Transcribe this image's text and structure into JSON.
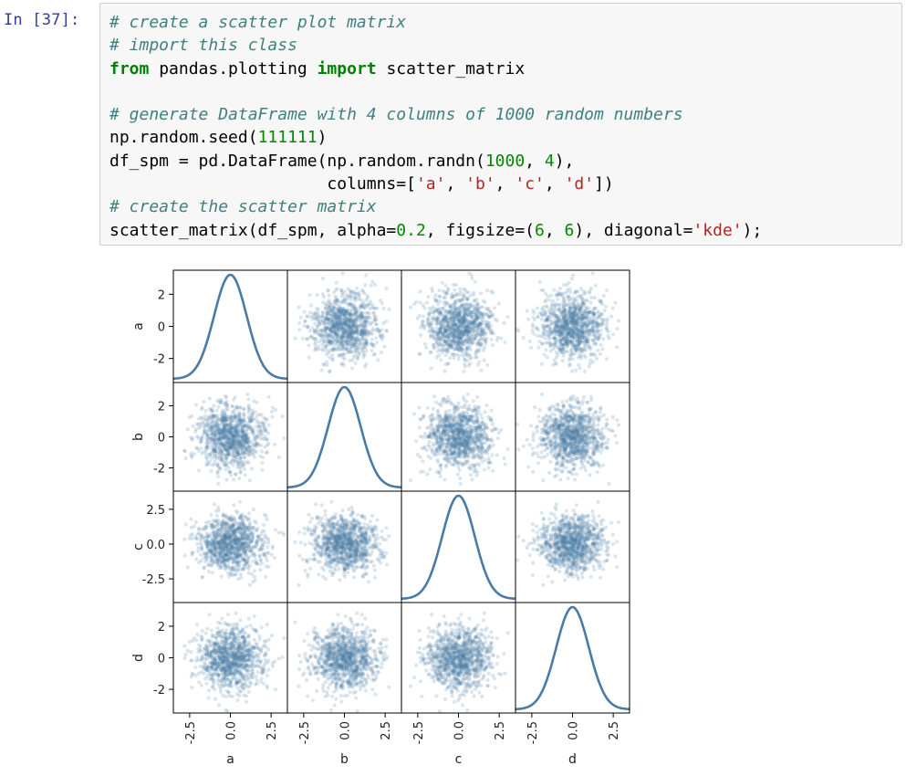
{
  "cell": {
    "prompt": "In [37]:",
    "code_lines": [
      [
        {
          "t": "# create a scatter plot matrix",
          "c": "cm"
        }
      ],
      [
        {
          "t": "# import this class",
          "c": "cm"
        }
      ],
      [
        {
          "t": "from",
          "c": "kw"
        },
        {
          "t": " pandas.plotting ",
          "c": ""
        },
        {
          "t": "import",
          "c": "kw"
        },
        {
          "t": " scatter_matrix",
          "c": ""
        }
      ],
      [
        {
          "t": "",
          "c": ""
        }
      ],
      [
        {
          "t": "# generate DataFrame with 4 columns of 1000 random numbers",
          "c": "cm"
        }
      ],
      [
        {
          "t": "np.random.seed(",
          "c": ""
        },
        {
          "t": "111111",
          "c": "num"
        },
        {
          "t": ")",
          "c": ""
        }
      ],
      [
        {
          "t": "df_spm = pd.DataFrame(np.random.randn(",
          "c": ""
        },
        {
          "t": "1000",
          "c": "num"
        },
        {
          "t": ", ",
          "c": ""
        },
        {
          "t": "4",
          "c": "num"
        },
        {
          "t": "),",
          "c": ""
        }
      ],
      [
        {
          "t": "                      columns=[",
          "c": ""
        },
        {
          "t": "'a'",
          "c": "st"
        },
        {
          "t": ", ",
          "c": ""
        },
        {
          "t": "'b'",
          "c": "st"
        },
        {
          "t": ", ",
          "c": ""
        },
        {
          "t": "'c'",
          "c": "st"
        },
        {
          "t": ", ",
          "c": ""
        },
        {
          "t": "'d'",
          "c": "st"
        },
        {
          "t": "])",
          "c": ""
        }
      ],
      [
        {
          "t": "# create the scatter matrix",
          "c": "cm"
        }
      ],
      [
        {
          "t": "scatter_matrix(df_spm, alpha=",
          "c": ""
        },
        {
          "t": "0.2",
          "c": "num"
        },
        {
          "t": ", figsize=(",
          "c": ""
        },
        {
          "t": "6",
          "c": "num"
        },
        {
          "t": ", ",
          "c": ""
        },
        {
          "t": "6",
          "c": "num"
        },
        {
          "t": "), diagonal=",
          "c": ""
        },
        {
          "t": "'kde'",
          "c": "st"
        },
        {
          "t": ");",
          "c": ""
        }
      ]
    ]
  },
  "colors": {
    "prompt": "#303f9f",
    "cell_bg": "#f7f7f7",
    "cell_border": "#cfcfcf",
    "point": "#4a7ba6",
    "kde_line": "#4a7ba6",
    "frame": "#000000"
  },
  "chart_data": {
    "type": "scatter",
    "subtype": "scatter_matrix",
    "variables": [
      "a",
      "b",
      "c",
      "d"
    ],
    "n_points": 1000,
    "alpha": 0.2,
    "diagonal": "kde",
    "distribution": "standard normal, independent columns",
    "x_ticks": {
      "a": [
        "-2.5",
        "0.0",
        "2.5"
      ],
      "b": [
        "-2.5",
        "0.0",
        "2.5"
      ],
      "c": [
        "-2.5",
        "0.0",
        "2.5"
      ],
      "d": [
        "-2.5",
        "0.0",
        "2.5"
      ]
    },
    "y_ticks": {
      "a": [
        "2",
        "0",
        "-2"
      ],
      "b": [
        "2",
        "0",
        "-2"
      ],
      "c": [
        "2.5",
        "0.0",
        "-2.5"
      ],
      "d": [
        "2",
        "0",
        "-2"
      ]
    },
    "xlim": [
      -3.5,
      3.5
    ],
    "ylim": [
      -3.5,
      3.5
    ],
    "ylim_c": [
      -4.2,
      3.8
    ]
  }
}
